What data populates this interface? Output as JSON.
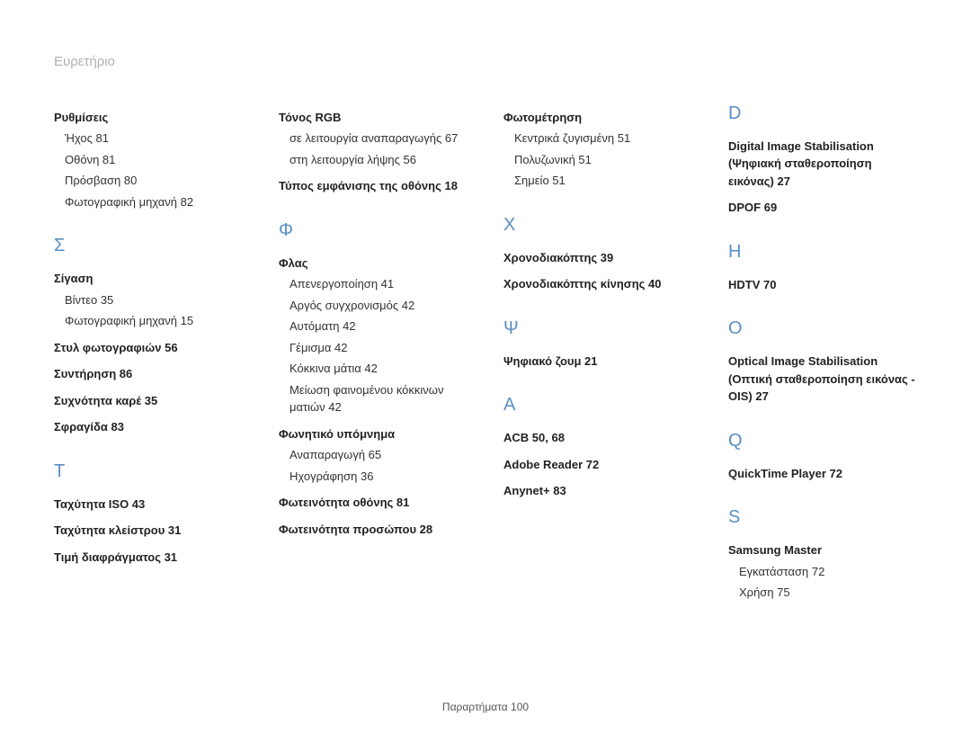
{
  "title": "Ευρετήριο",
  "footer": "Παραρτήματα  100",
  "colors": {
    "heading": "#5a8fc4",
    "title": "#b0b0b0",
    "text": "#333333",
    "bold": "#222222"
  },
  "col1": {
    "rythmiseis": {
      "label": "Ρυθμίσεις"
    },
    "ixos": "Ήχος  81",
    "othoni": "Οθόνη  81",
    "prosvasi": "Πρόσβαση  80",
    "fotografiki": "Φωτογραφική μηχανή  82",
    "sigma_heading": "Σ",
    "sigasi": {
      "label": "Σίγαση"
    },
    "vinteo": "Βίντεο  35",
    "fotografiki2": "Φωτογραφική μηχανή  15",
    "styl": "Στυλ φωτογραφιών  56",
    "syntirisi": "Συντήρηση  86",
    "syxnotita": "Συχνότητα καρέ  35",
    "sfragida": "Σφραγίδα  83",
    "tau_heading": "Τ",
    "taxISO": "Ταχύτητα ISO  43",
    "taxKleistrou": "Ταχύτητα κλείστρου  31",
    "timi": "Τιμή διαφράγματος  31"
  },
  "col2": {
    "tonos": {
      "label": "Τόνος RGB"
    },
    "tonos1": "σε λειτουργία αναπαραγωγής  67",
    "tonos2": "στη λειτουργία λήψης  56",
    "typos": "Τύπος εμφάνισης της οθόνης  18",
    "phi_heading": "Φ",
    "flas": {
      "label": "Φλας"
    },
    "f1": "Απενεργοποίηση  41",
    "f2": "Αργός συγχρονισμός  42",
    "f3": "Αυτόματη  42",
    "f4": "Γέμισμα  42",
    "f5": "Κόκκινα μάτια  42",
    "f6": "Μείωση φαινομένου κόκκινων ματιών  42",
    "fonitiko": {
      "label": "Φωνητικό υπόμνημα"
    },
    "fon1": "Αναπαραγωγή  65",
    "fon2": "Ηχογράφηση  36",
    "foteinothita": "Φωτεινότητα οθόνης  81",
    "foteinothita2": "Φωτεινότητα προσώπου  28"
  },
  "col3": {
    "fotometrisi": {
      "label": "Φωτομέτρηση"
    },
    "fm1": "Κεντρικά ζυγισμένη  51",
    "fm2": "Πολυζωνική  51",
    "fm3": "Σημείο  51",
    "chi_heading": "Χ",
    "xrono": "Χρονοδιακόπτης  39",
    "xrono2": "Χρονοδιακόπτης κίνησης  40",
    "psi_heading": "Ψ",
    "psifiako": "Ψηφιακό ζουμ  21",
    "a_heading": "A",
    "acb": "ACB  50, 68",
    "adobe": "Adobe Reader  72",
    "anynet": "Anynet+  83"
  },
  "col4": {
    "d_heading": "D",
    "dis": "Digital Image Stabilisation (Ψηφιακή σταθεροποίηση εικόνας)  27",
    "dpof": "DPOF  69",
    "h_heading": "H",
    "hdtv": "HDTV  70",
    "o_heading": "O",
    "ois": "Optical Image Stabilisation (Οπτική σταθεροποίηση εικόνας - OIS)  27",
    "q_heading": "Q",
    "qt": "QuickTime Player  72",
    "s_heading": "S",
    "sm": {
      "label": "Samsung Master"
    },
    "sm1": "Εγκατάσταση  72",
    "sm2": "Χρήση  75"
  }
}
